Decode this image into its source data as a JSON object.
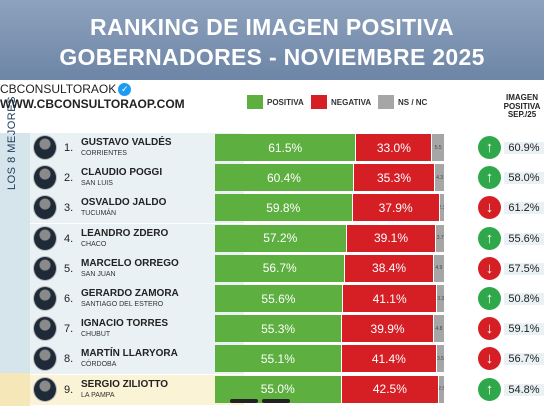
{
  "header": {
    "title_line1": "RANKING DE IMAGEN POSITIVA",
    "title_line2": "GOBERNADORES - NOVIEMBRE 2025"
  },
  "brand": {
    "handle": "CBCONSULTORAOK",
    "website": "WWW.CBCONSULTORAOP.COM"
  },
  "legend": {
    "positive": "POSITIVA",
    "negative": "NEGATIVA",
    "ns_nc": "NS / NC"
  },
  "prev_header": "IMAGEN POSITIVA SEP./25",
  "side_label": "LOS 8 MEJORES",
  "colors": {
    "positive": "#5daf3f",
    "negative": "#d61e25",
    "ns_nc": "#a6a6a6",
    "up": "#2ea84b",
    "down": "#d61e25",
    "side_top8": "#d5e5eb",
    "side_other": "#f5e7b8",
    "banner": "#7a90ae"
  },
  "chart_data": {
    "type": "bar",
    "stacked": true,
    "orientation": "horizontal",
    "title": "RANKING DE IMAGEN POSITIVA GOBERNADORES - NOVIEMBRE 2025",
    "xlim": [
      0,
      100
    ],
    "series_names": [
      "POSITIVA",
      "NEGATIVA",
      "NS / NC"
    ],
    "rows": [
      {
        "rank": "1.",
        "name": "GUSTAVO VALDÉS",
        "province": "CORRIENTES",
        "positive": 61.5,
        "negative": 33.0,
        "ns": 5.5,
        "positive_label": "61.5%",
        "negative_label": "33.0%",
        "ns_label": "5.5",
        "trend": "up",
        "prev": "60.9%"
      },
      {
        "rank": "2.",
        "name": "CLAUDIO POGGI",
        "province": "SAN LUIS",
        "positive": 60.4,
        "negative": 35.3,
        "ns": 4.3,
        "positive_label": "60.4%",
        "negative_label": "35.3%",
        "ns_label": "4.3",
        "trend": "up",
        "prev": "58.0%"
      },
      {
        "rank": "3.",
        "name": "OSVALDO JALDO",
        "province": "TUCUMÁN",
        "positive": 59.8,
        "negative": 37.9,
        "ns": 2.3,
        "positive_label": "59.8%",
        "negative_label": "37.9%",
        "ns_label": "2.3",
        "trend": "down",
        "prev": "61.2%"
      },
      {
        "rank": "4.",
        "name": "LEANDRO ZDERO",
        "province": "CHACO",
        "positive": 57.2,
        "negative": 39.1,
        "ns": 3.7,
        "positive_label": "57.2%",
        "negative_label": "39.1%",
        "ns_label": "3.7",
        "trend": "up",
        "prev": "55.6%"
      },
      {
        "rank": "5.",
        "name": "MARCELO ORREGO",
        "province": "SAN JUAN",
        "positive": 56.7,
        "negative": 38.4,
        "ns": 4.9,
        "positive_label": "56.7%",
        "negative_label": "38.4%",
        "ns_label": "4.9",
        "trend": "down",
        "prev": "57.5%"
      },
      {
        "rank": "6.",
        "name": "GERARDO ZAMORA",
        "province": "SANTIAGO DEL ESTERO",
        "positive": 55.6,
        "negative": 41.1,
        "ns": 3.3,
        "positive_label": "55.6%",
        "negative_label": "41.1%",
        "ns_label": "3.3",
        "trend": "up",
        "prev": "50.8%"
      },
      {
        "rank": "7.",
        "name": "IGNACIO TORRES",
        "province": "CHUBUT",
        "positive": 55.3,
        "negative": 39.9,
        "ns": 4.8,
        "positive_label": "55.3%",
        "negative_label": "39.9%",
        "ns_label": "4.8",
        "trend": "down",
        "prev": "59.1%"
      },
      {
        "rank": "8.",
        "name": "MARTÍN LLARYORA",
        "province": "CÓRDOBA",
        "positive": 55.1,
        "negative": 41.4,
        "ns": 3.5,
        "positive_label": "55.1%",
        "negative_label": "41.4%",
        "ns_label": "3.5",
        "trend": "down",
        "prev": "56.7%"
      },
      {
        "rank": "9.",
        "name": "SERGIO ZILIOTTO",
        "province": "LA PAMPA",
        "positive": 55.0,
        "negative": 42.5,
        "ns": 2.5,
        "positive_label": "55.0%",
        "negative_label": "42.5%",
        "ns_label": "2.5",
        "trend": "up",
        "prev": "54.8%"
      }
    ]
  }
}
